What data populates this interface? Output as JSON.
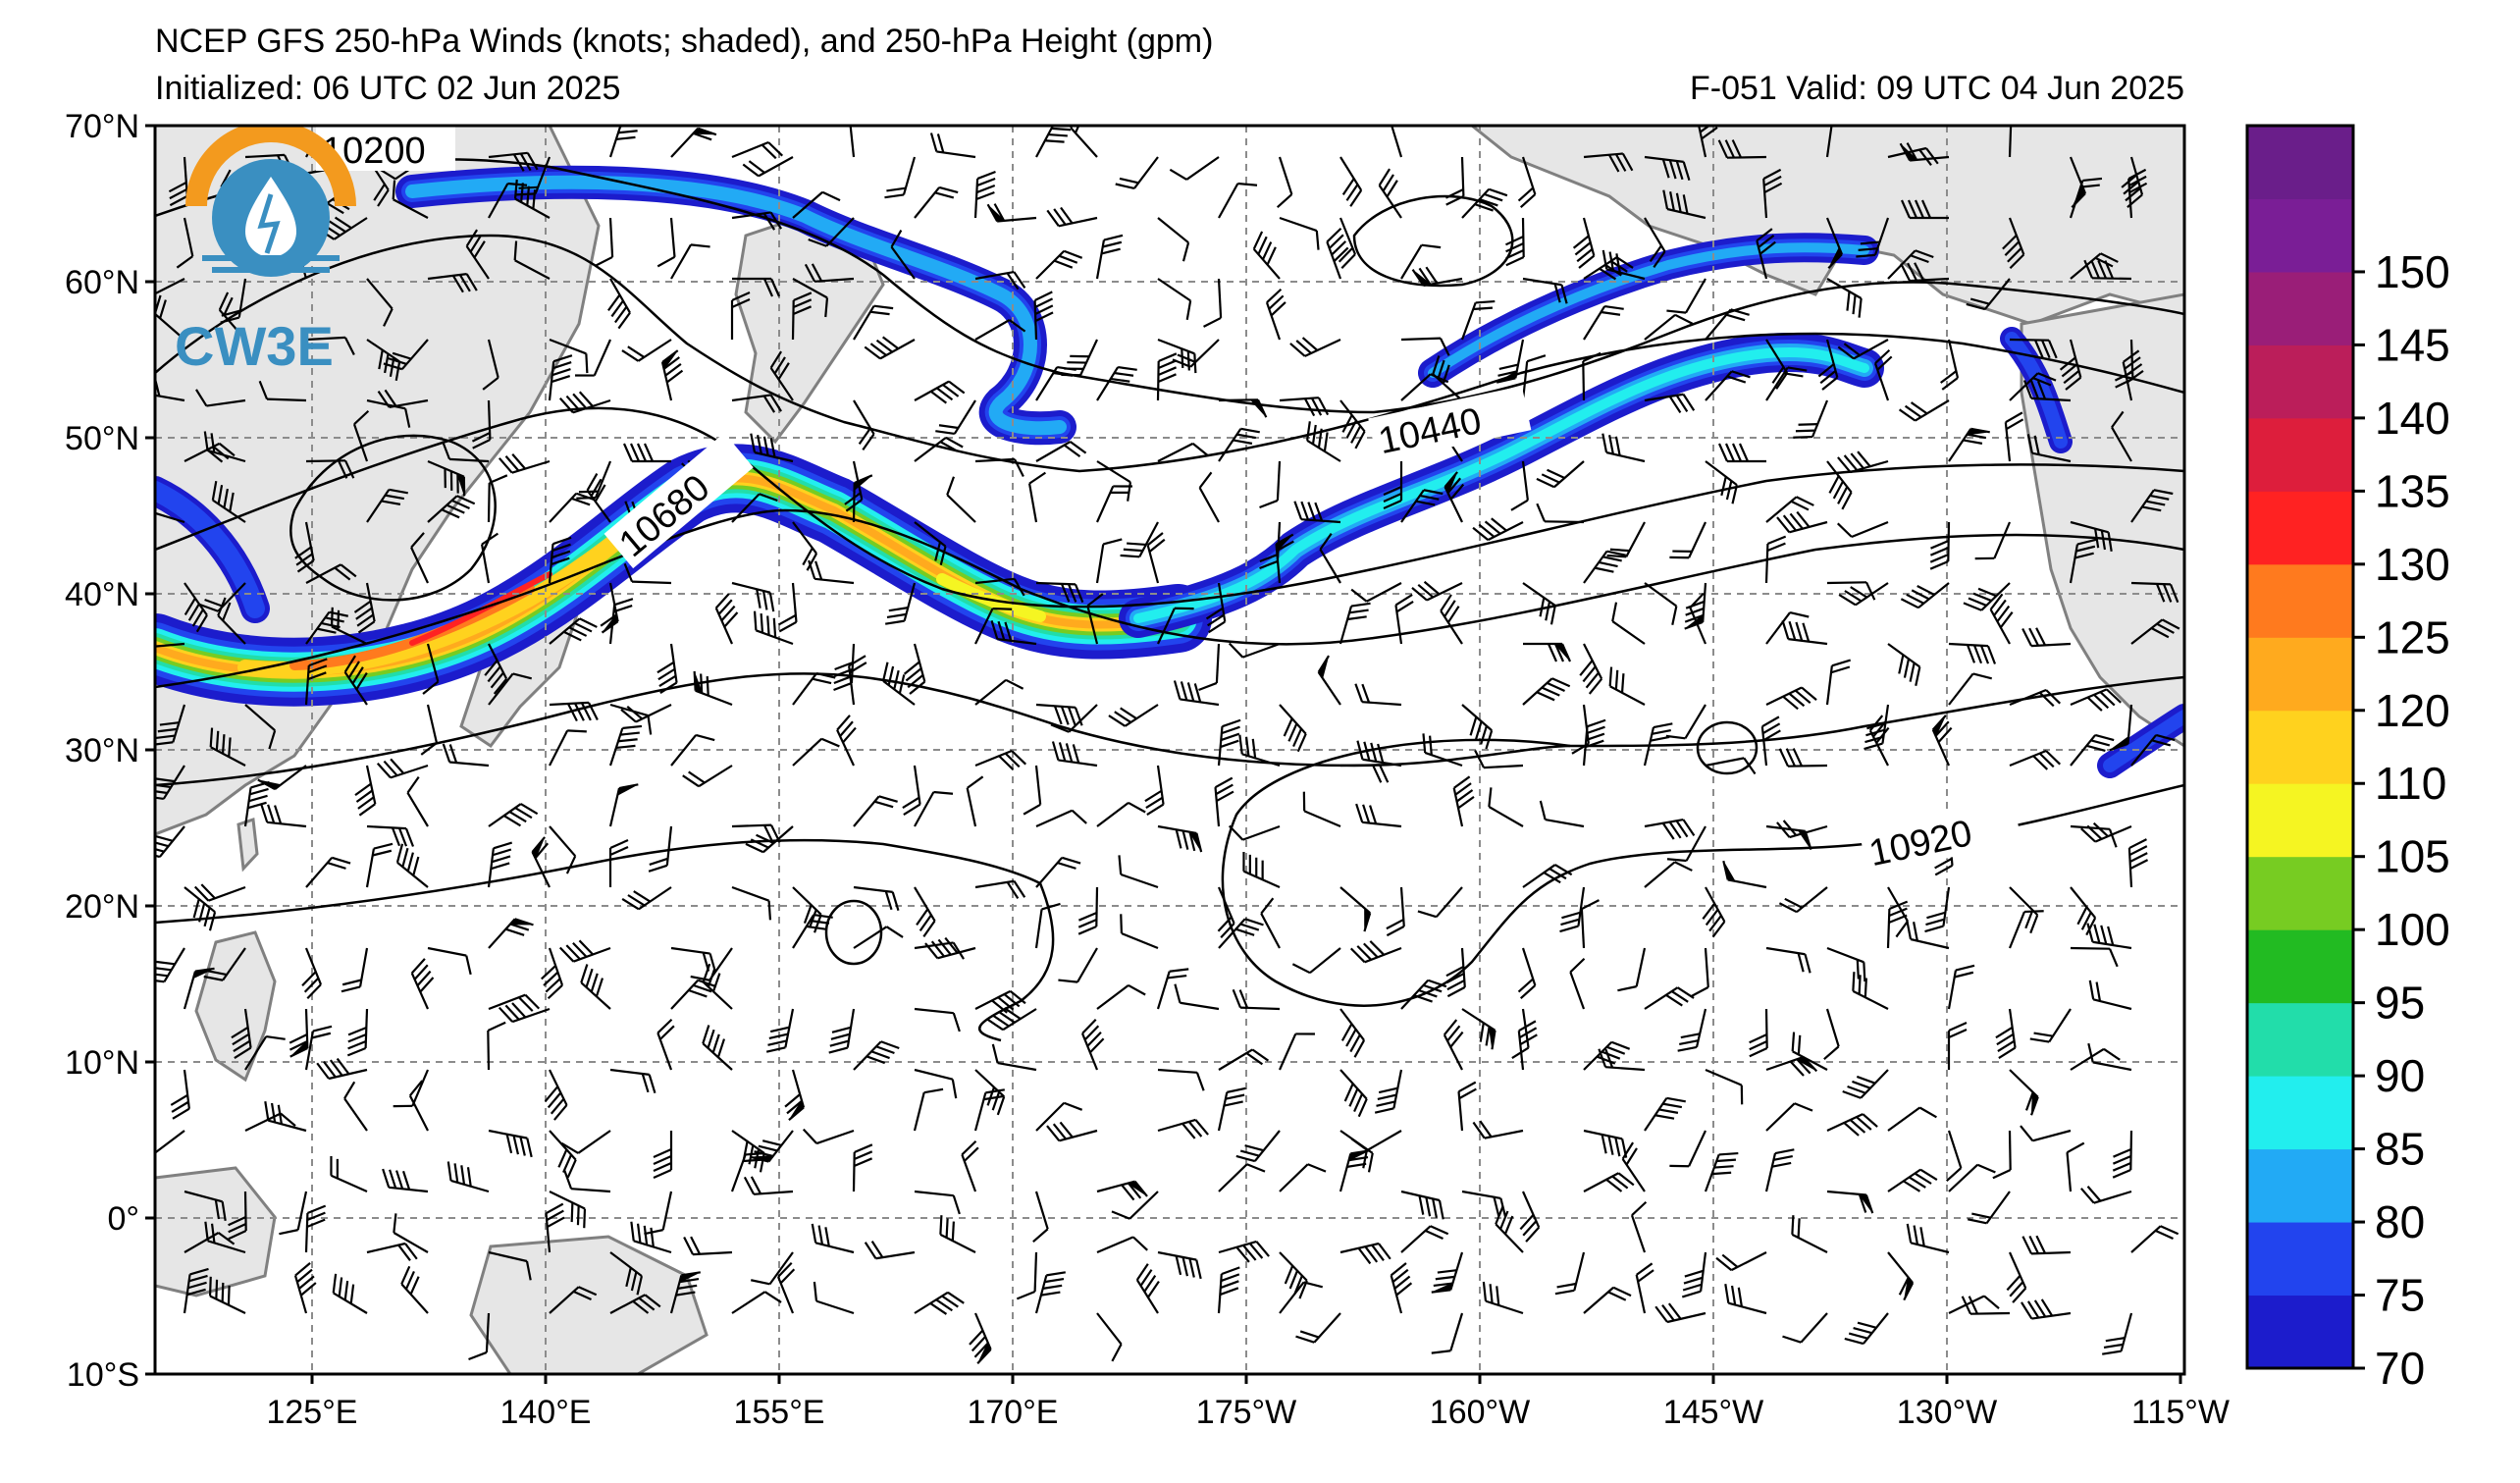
{
  "header": {
    "title": "NCEP GFS 250-hPa Winds (knots; shaded), and 250-hPa Height (gpm)",
    "initialized": "Initialized: 06 UTC 02 Jun 2025",
    "valid": "F-051  Valid: 09 UTC 04 Jun 2025"
  },
  "logo": {
    "text": "CW3E",
    "colors": {
      "sun": "#f39a1e",
      "water": "#3a8fc1"
    }
  },
  "axes": {
    "lat_labels": [
      "70°N",
      "60°N",
      "50°N",
      "40°N",
      "30°N",
      "20°N",
      "10°N",
      "0°",
      "10°S"
    ],
    "lon_labels": [
      "125°E",
      "140°E",
      "155°E",
      "170°E",
      "175°W",
      "160°W",
      "145°W",
      "130°W",
      "115°W"
    ]
  },
  "contour_labels": [
    "10200",
    "10680",
    "10440",
    "10920"
  ],
  "colorbar": {
    "labels": [
      "70",
      "75",
      "80",
      "85",
      "90",
      "95",
      "100",
      "105",
      "110",
      "120",
      "125",
      "130",
      "135",
      "140",
      "145",
      "150"
    ],
    "colors": [
      "#1c1ccc",
      "#2244ee",
      "#22aaf5",
      "#22eeee",
      "#22ddaa",
      "#22bb22",
      "#77cc22",
      "#f5f522",
      "#ffd21e",
      "#ffaa1e",
      "#ff7a1e",
      "#ff2222",
      "#dd1e3c",
      "#bb1e5a",
      "#9a1e78",
      "#7a1e96"
    ],
    "extra_top_color": "#6a1e8a"
  },
  "map_colors": {
    "land": "#e6e6e6",
    "coast": "#808080",
    "grid": "#8c8c8c"
  }
}
